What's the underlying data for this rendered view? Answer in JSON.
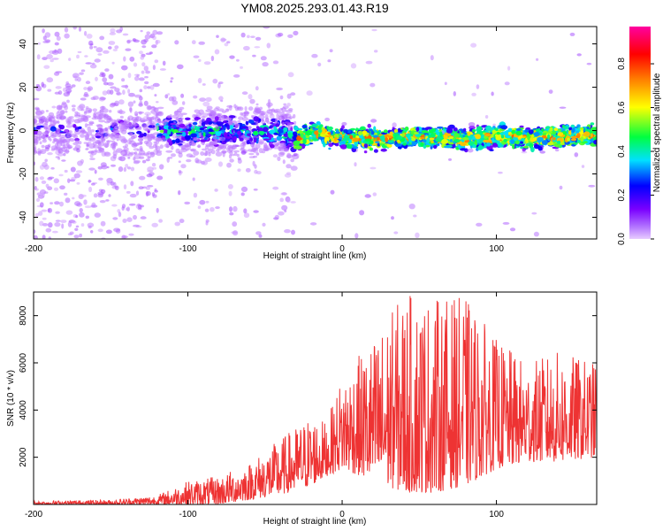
{
  "title": "YM08.2025.293.01.43.R19",
  "chart_data": [
    {
      "type": "heatmap",
      "title": "YM08.2025.293.01.43.R19",
      "xlabel": "Height of straight line (km)",
      "ylabel": "Frequency (Hz)",
      "xlim": [
        -200,
        165
      ],
      "ylim": [
        -50,
        48
      ],
      "xticks": [
        -200,
        -100,
        0,
        100
      ],
      "xtick_labels": [
        "-200",
        "-100",
        "0",
        "100"
      ],
      "yticks": [
        -40,
        -20,
        0,
        20,
        40
      ],
      "ytick_labels": [
        "-40",
        "-20",
        "0",
        "20",
        "40"
      ],
      "colorbar": {
        "label": "Normalized spectral amplitude",
        "range": [
          0,
          0.97
        ],
        "ticks": [
          0.0,
          0.2,
          0.4,
          0.6,
          0.8
        ],
        "tick_labels": [
          "0.0",
          "0.2",
          "0.4",
          "0.6",
          "0.8"
        ],
        "colormap": [
          "#e8ccff",
          "#7a00ff",
          "#0000ff",
          "#00e0ff",
          "#00ff40",
          "#ffff00",
          "#ff8000",
          "#ff0000",
          "#ff00a0"
        ]
      },
      "ridge": {
        "x": [
          -200,
          -150,
          -120,
          -100,
          -80,
          -60,
          -40,
          -28,
          -20,
          0,
          20,
          50,
          80,
          100,
          130,
          165
        ],
        "frequency": [
          0,
          0,
          0,
          -1,
          0,
          0,
          -1,
          -4,
          -1,
          -3,
          -4,
          -3,
          -4,
          -3,
          -3,
          -2
        ]
      }
    },
    {
      "type": "line",
      "xlabel": "Height of straight line (km)",
      "ylabel": "SNR (10 * v/v)",
      "xlim": [
        -200,
        165
      ],
      "ylim": [
        0,
        9000
      ],
      "xticks": [
        -200,
        -100,
        0,
        100
      ],
      "xtick_labels": [
        "-200",
        "-100",
        "0",
        "100"
      ],
      "yticks": [
        2000,
        4000,
        6000,
        8000
      ],
      "ytick_labels": [
        "2000",
        "4000",
        "6000",
        "8000"
      ],
      "series": [
        {
          "name": "SNR",
          "color": "#ee3333",
          "envelope_x": [
            -200,
            -150,
            -120,
            -100,
            -80,
            -60,
            -40,
            -20,
            -10,
            0,
            20,
            40,
            60,
            80,
            100,
            120,
            140,
            165
          ],
          "envelope_min": [
            0,
            0,
            0,
            0,
            0,
            200,
            400,
            800,
            1200,
            1500,
            1000,
            500,
            500,
            800,
            1500,
            1800,
            1800,
            2000
          ],
          "envelope_max": [
            150,
            200,
            400,
            1000,
            1200,
            1800,
            2800,
            3800,
            3500,
            5500,
            7000,
            9000,
            8800,
            8800,
            7000,
            6000,
            6500,
            6000
          ]
        }
      ]
    }
  ]
}
